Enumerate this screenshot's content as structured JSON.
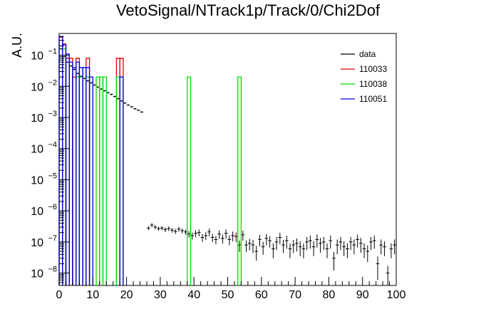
{
  "chart_data": {
    "type": "histogram",
    "title": "VetoSignal/NTrack1p/Track/0/Chi2Dof",
    "xlabel": "",
    "ylabel": "A.U.",
    "xlim": [
      0,
      100
    ],
    "ylim": [
      4e-09,
      0.5
    ],
    "log_y": true,
    "grid": false,
    "bin_width": 1,
    "x_ticks": [
      0,
      10,
      20,
      30,
      40,
      50,
      60,
      70,
      80,
      90,
      100
    ],
    "x_tick_labels": [
      "0",
      "10",
      "20",
      "30",
      "40",
      "50",
      "60",
      "70",
      "80",
      "90",
      "100"
    ],
    "y_ticks": [
      1e-08,
      1e-07,
      1e-06,
      1e-05,
      0.0001,
      0.001,
      0.01,
      0.1
    ],
    "y_tick_labels": [
      {
        "base": "10",
        "exp": "−8"
      },
      {
        "base": "10",
        "exp": "−7"
      },
      {
        "base": "10",
        "exp": "−6"
      },
      {
        "base": "10",
        "exp": "−5"
      },
      {
        "base": "10",
        "exp": "−4"
      },
      {
        "base": "10",
        "exp": "−3"
      },
      {
        "base": "10",
        "exp": "−2"
      },
      {
        "base": "10",
        "exp": "−1"
      }
    ],
    "legend_position": "top-right",
    "series": [
      {
        "name": "data",
        "color": "#000000",
        "style": "points",
        "x": [
          0.5,
          1.5,
          2.5,
          3.5,
          4.5,
          5.5,
          6.5,
          7.5,
          8.5,
          9.5,
          10.5,
          11.5,
          12.5,
          13.5,
          14.5,
          15.5,
          16.5,
          17.5,
          18.5,
          19.5,
          20.5,
          21.5,
          22.5,
          23.5,
          24.5,
          25.5,
          26.5,
          27.5,
          28.5,
          29.5,
          30.5,
          31.5,
          32.5,
          33.5,
          34.5,
          35.5,
          36.5,
          37.5,
          38.5,
          39.5,
          40.5,
          41.5,
          42.5,
          43.5,
          44.5,
          45.5,
          46.5,
          47.5,
          48.5,
          49.5,
          50.5,
          51.5,
          52.5,
          53.5,
          54.5,
          55.5,
          56.5,
          57.5,
          58.5,
          59.5,
          60.5,
          61.5,
          62.5,
          63.5,
          64.5,
          65.5,
          66.5,
          67.5,
          68.5,
          69.5,
          70.5,
          71.5,
          72.5,
          73.5,
          74.5,
          75.5,
          76.5,
          77.5,
          78.5,
          79.5,
          80.5,
          81.5,
          82.5,
          83.5,
          84.5,
          85.5,
          86.5,
          87.5,
          88.5,
          89.5,
          90.5,
          91.5,
          92.5,
          93.5,
          94.5,
          95.5,
          96.5,
          97.5,
          98.5,
          99.5
        ],
        "y": [
          0.16,
          0.09,
          0.06,
          0.045,
          0.035,
          0.026,
          0.021,
          0.018,
          0.015,
          0.013,
          0.011,
          0.0095,
          0.0082,
          0.0072,
          0.0063,
          0.0055,
          0.0047,
          0.004,
          0.0034,
          0.0029,
          0.0025,
          0.0022,
          0.0019,
          0.0017,
          0.0015,
          0,
          2.8e-07,
          3.5e-07,
          3e-07,
          2.7e-07,
          2.8e-07,
          2.5e-07,
          2.7e-07,
          2.4e-07,
          2.2e-07,
          2.6e-07,
          2.3e-07,
          2.1e-07,
          1.8e-07,
          1.6e-07,
          1.9e-07,
          2e-07,
          1.4e-07,
          1.6e-07,
          2.1e-07,
          1.4e-07,
          1.2e-07,
          1.8e-07,
          1.3e-07,
          1.9e-07,
          1.2e-07,
          1.6e-07,
          1.5e-07,
          8e-08,
          1.7e-07,
          8e-08,
          9e-08,
          8e-08,
          5e-08,
          1.2e-07,
          7e-08,
          1.3e-07,
          1.1e-07,
          6e-08,
          1e-07,
          1.4e-07,
          8e-08,
          1.1e-07,
          6e-08,
          8e-08,
          9e-08,
          7e-08,
          6e-08,
          1e-07,
          1.1e-07,
          7e-08,
          1.2e-07,
          9e-08,
          1e-07,
          6e-08,
          1.1e-07,
          3e-08,
          8e-08,
          1e-07,
          7e-08,
          6e-08,
          1e-07,
          8e-08,
          1.2e-07,
          9e-08,
          6e-08,
          5e-08,
          1e-07,
          1.1e-07,
          2e-08,
          8e-08,
          7e-08,
          1e-08,
          6e-08,
          8e-08
        ],
        "err_rel": [
          0.05,
          0.05,
          0.05,
          0.06,
          0.06,
          0.06,
          0.06,
          0.06,
          0.06,
          0.06,
          0.06,
          0.06,
          0.06,
          0.06,
          0.06,
          0.06,
          0.06,
          0.06,
          0.06,
          0.06,
          0.06,
          0.06,
          0.06,
          0.06,
          0.06,
          0,
          0.15,
          0.15,
          0.15,
          0.15,
          0.15,
          0.17,
          0.17,
          0.17,
          0.18,
          0.18,
          0.18,
          0.2,
          0.22,
          0.25,
          0.25,
          0.25,
          0.28,
          0.28,
          0.28,
          0.3,
          0.3,
          0.3,
          0.32,
          0.32,
          0.35,
          0.35,
          0.35,
          0.4,
          0.35,
          0.4,
          0.4,
          0.45,
          0.5,
          0.4,
          0.45,
          0.4,
          0.4,
          0.5,
          0.45,
          0.4,
          0.45,
          0.45,
          0.5,
          0.45,
          0.45,
          0.5,
          0.5,
          0.45,
          0.45,
          0.5,
          0.45,
          0.5,
          0.45,
          0.5,
          0.45,
          0.6,
          0.5,
          0.45,
          0.5,
          0.5,
          0.45,
          0.5,
          0.45,
          0.5,
          0.5,
          0.55,
          0.45,
          0.45,
          0.7,
          0.5,
          0.5,
          0.7,
          0.5,
          0.5
        ]
      },
      {
        "name": "110033",
        "color": "#dd0000",
        "style": "step",
        "x": [
          0.5,
          1.5,
          2.5,
          3.5,
          4.5,
          5.5,
          6.5,
          7.5,
          8.5,
          9.5,
          10.5,
          11.5,
          12.5,
          13.5,
          14.5,
          15.5,
          16.5,
          17.5,
          18.5,
          19.5
        ],
        "y": [
          0.38,
          0.23,
          0.08,
          0.08,
          0.02,
          0.08,
          0,
          0,
          0.08,
          0,
          0,
          0,
          0,
          0,
          0,
          0,
          0,
          0.08,
          0.08,
          0
        ]
      },
      {
        "name": "110038",
        "color": "#00dd00",
        "style": "step",
        "x": [
          0.5,
          1.5,
          2.5,
          3.5,
          4.5,
          5.5,
          6.5,
          7.5,
          8.5,
          9.5,
          10.5,
          11.5,
          12.5,
          13.5,
          14.5,
          15.5,
          16.5,
          17.5,
          18.5,
          19.5,
          38.5,
          53.5
        ],
        "y": [
          0.2,
          0.16,
          0,
          0,
          0,
          0.02,
          0.02,
          0,
          0.02,
          0,
          0,
          0.02,
          0.02,
          0.02,
          0,
          0,
          0,
          0.02,
          0.02,
          0,
          0.02,
          0.02
        ]
      },
      {
        "name": "110051",
        "color": "#0000dd",
        "style": "step",
        "x": [
          0.5,
          1.5,
          2.5,
          3.5,
          4.5,
          5.5,
          6.5,
          7.5,
          8.5,
          9.5,
          10.5,
          11.5,
          12.5,
          13.5,
          14.5,
          15.5,
          16.5,
          17.5,
          18.5,
          19.5
        ],
        "y": [
          0.4,
          0.22,
          0.11,
          0.06,
          0.04,
          0.06,
          0.04,
          0.04,
          0.04,
          0.02,
          0,
          0,
          0,
          0,
          0,
          0,
          0,
          0,
          0.02,
          0
        ]
      }
    ]
  }
}
